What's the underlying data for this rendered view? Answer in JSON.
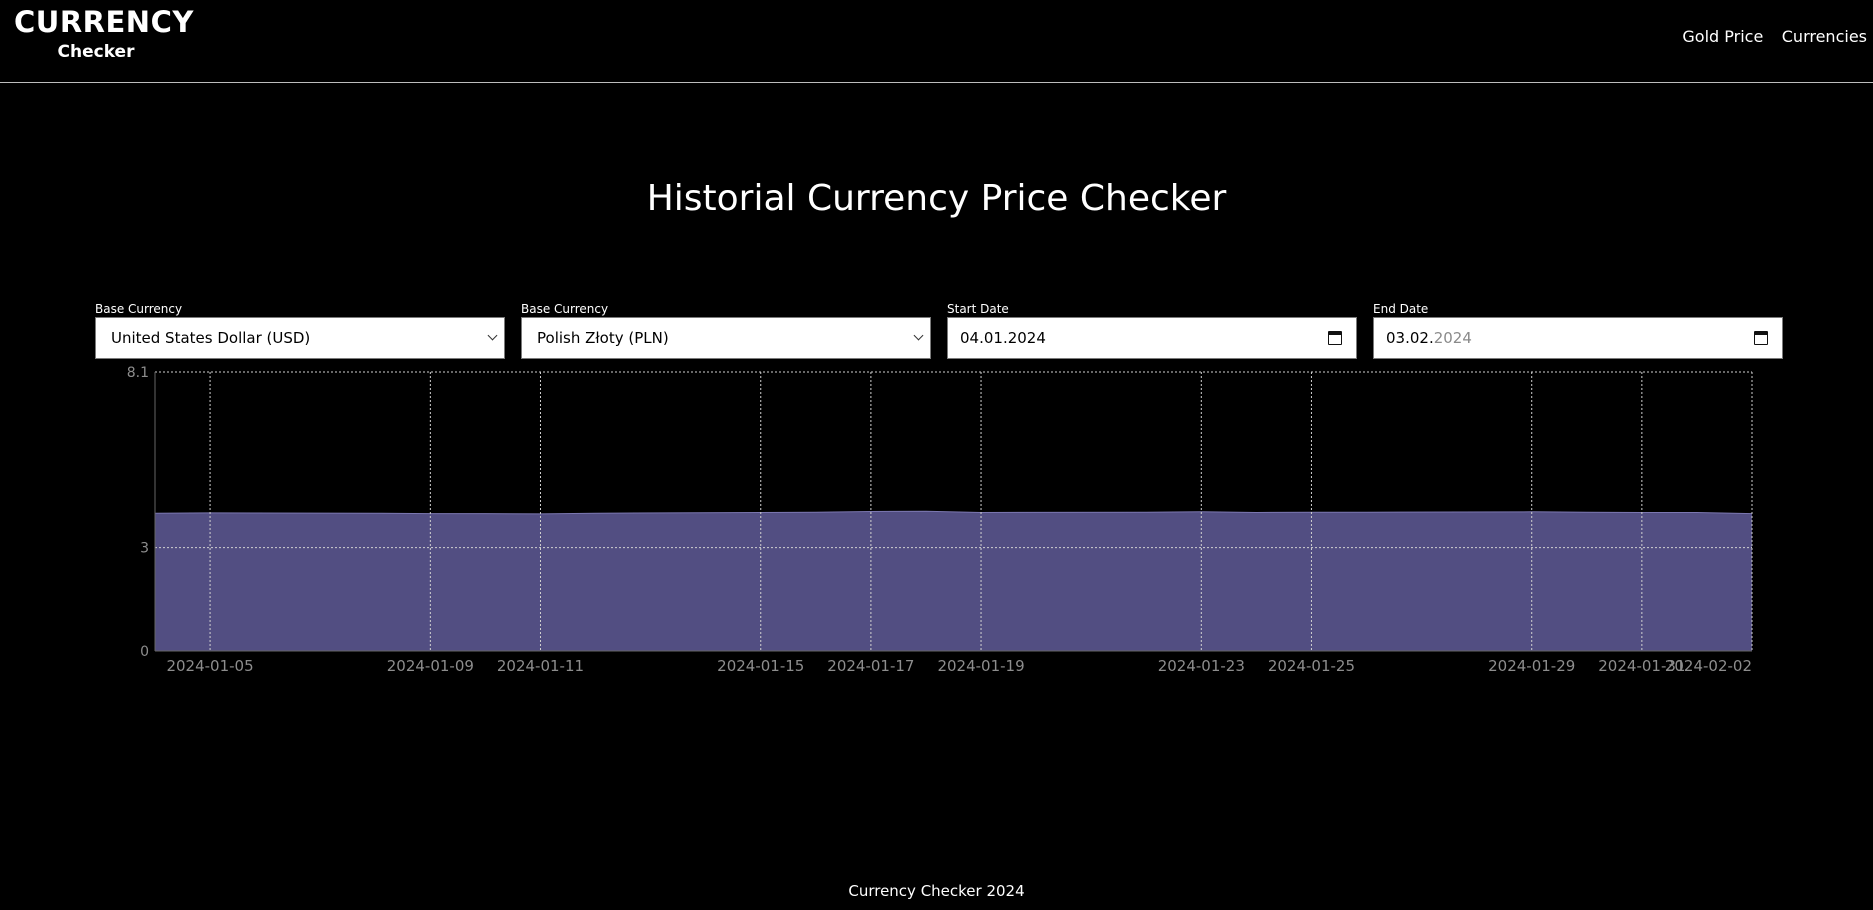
{
  "header": {
    "logo_top": "CURRENCY",
    "logo_bottom": "Checker",
    "nav": [
      {
        "label": "Gold Price"
      },
      {
        "label": "Currencies"
      }
    ]
  },
  "main": {
    "title": "Historial Currency Price Checker"
  },
  "controls": {
    "base_currency": {
      "label": "Base Currency",
      "value": "United States Dollar (USD)"
    },
    "target_currency": {
      "label": "Base Currency",
      "value": "Polish Złoty (PLN)"
    },
    "start_date": {
      "label": "Start Date",
      "value": "04.01.2024"
    },
    "end_date": {
      "label": "End Date",
      "value_main": "03.02.",
      "value_muted": "2024"
    }
  },
  "chart_data": {
    "type": "area",
    "title": "",
    "xlabel": "",
    "ylabel": "",
    "ylim": [
      0,
      8.1
    ],
    "ytick_labels": [
      "0",
      "3",
      "8.1"
    ],
    "xtick_labels": [
      "2024-01-05",
      "2024-01-09",
      "2024-01-11",
      "2024-01-15",
      "2024-01-17",
      "2024-01-19",
      "2024-01-23",
      "2024-01-25",
      "2024-01-29",
      "2024-01-31",
      "2024-02-02"
    ],
    "x": [
      "2024-01-04",
      "2024-01-05",
      "2024-01-08",
      "2024-01-09",
      "2024-01-10",
      "2024-01-11",
      "2024-01-12",
      "2024-01-15",
      "2024-01-16",
      "2024-01-17",
      "2024-01-18",
      "2024-01-19",
      "2024-01-22",
      "2024-01-23",
      "2024-01-24",
      "2024-01-25",
      "2024-01-26",
      "2024-01-29",
      "2024-01-30",
      "2024-01-31",
      "2024-02-01",
      "2024-02-02"
    ],
    "series": [
      {
        "values": [
          4.0,
          4.01,
          4.0,
          3.99,
          3.99,
          3.98,
          4.0,
          4.02,
          4.03,
          4.05,
          4.06,
          4.02,
          4.03,
          4.04,
          4.02,
          4.03,
          4.03,
          4.04,
          4.03,
          4.02,
          4.02,
          3.99
        ]
      }
    ],
    "grid": true,
    "colors": {
      "fill": "#524e82",
      "stroke": "#7b77b0",
      "grid": "#d0d0d0",
      "tick": "#8d8d8d"
    }
  },
  "footer": {
    "text": "Currency Checker 2024"
  }
}
